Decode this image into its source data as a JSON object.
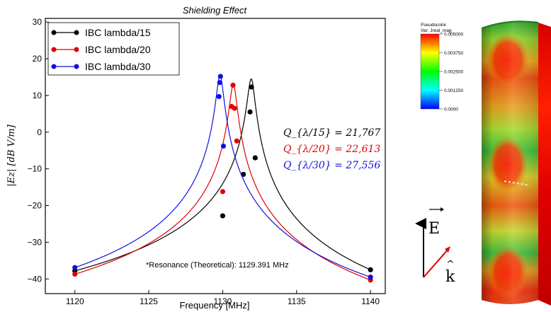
{
  "chart_data": {
    "type": "line",
    "title": "Shielding Effect",
    "xlabel": "Frequency [MHz]",
    "ylabel": "|Ez| [dB V/m]",
    "xlim": [
      1118,
      1141
    ],
    "ylim": [
      -44,
      31
    ],
    "xticks": [
      1120,
      1125,
      1130,
      1135,
      1140
    ],
    "yticks": [
      30,
      20,
      10,
      0,
      -10,
      -20,
      -30,
      -40
    ],
    "grid": false,
    "legend_position": "top-left",
    "series": [
      {
        "name": "IBC lambda/15",
        "color": "#000000",
        "x": [
          1120,
          1130,
          1131.4,
          1131.85,
          1131.95,
          1132.2,
          1140
        ],
        "y": [
          -37.8,
          -22.8,
          -11.5,
          5.5,
          12.3,
          -7,
          -37.5
        ],
        "resonance_freq": 1131.93,
        "resonance_peak": 14.5
      },
      {
        "name": "IBC lambda/20",
        "color": "#e00000",
        "x": [
          1120,
          1130,
          1130.6,
          1130.7,
          1130.8,
          1130.95,
          1140
        ],
        "y": [
          -38.7,
          -16.2,
          7.0,
          12.8,
          6.5,
          -2.4,
          -40.3
        ],
        "resonance_freq": 1130.72,
        "resonance_peak": 13.0
      },
      {
        "name": "IBC lambda/30",
        "color": "#1010e0",
        "x": [
          1120,
          1129.75,
          1129.8,
          1129.85,
          1130.05,
          1140
        ],
        "y": [
          -36.9,
          9.7,
          13.5,
          15.2,
          -3.8,
          -39.5
        ],
        "resonance_freq": 1129.82,
        "resonance_peak": 15.5
      }
    ],
    "annotations": [
      {
        "text": "Q_{λ/15} = 21,767",
        "color": "#000000"
      },
      {
        "text": "Q_{λ/20} = 22,613",
        "color": "#e00000"
      },
      {
        "text": "Q_{λ/30} = 27,556",
        "color": "#1010e0"
      },
      {
        "text": "*Resonance (Theoretical): 1129.391 MHz",
        "color": "#000000"
      }
    ]
  },
  "colorbar": {
    "title_line1": "Pseudocolor",
    "title_line2": "Var: Jreal_mag",
    "tick_labels": [
      "0.005000",
      "0.003750",
      "0.002500",
      "0.001250",
      "0.0000"
    ]
  },
  "vectors": {
    "e_label": "E",
    "k_label": "k"
  }
}
